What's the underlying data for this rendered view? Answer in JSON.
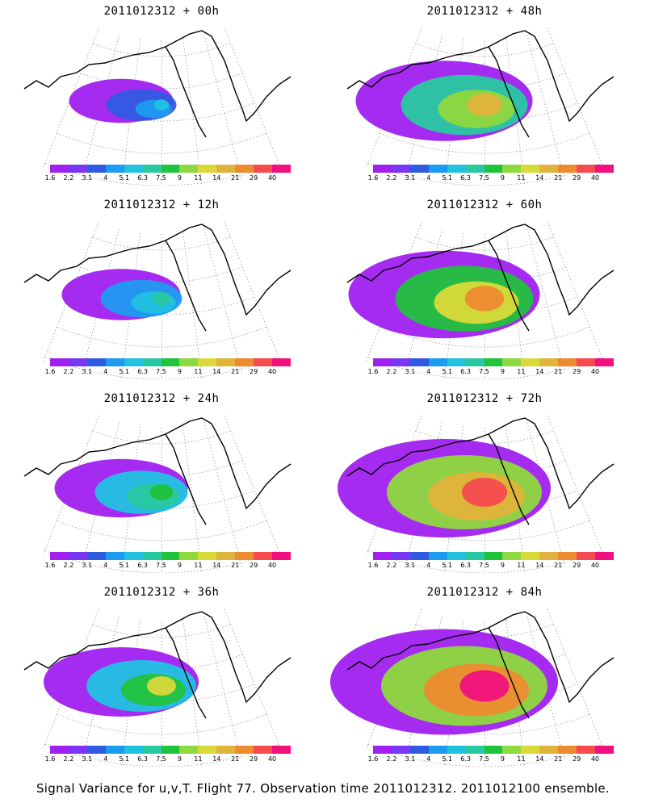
{
  "caption": "Signal Variance for u,v,T. Flight 77. Observation time 2011012312. 2011012100 ensemble.",
  "colorbar": {
    "colors": [
      "#a020f0",
      "#7a36f5",
      "#2f5be0",
      "#1d9bf0",
      "#21c2e0",
      "#28c9a0",
      "#21c23c",
      "#8ed93d",
      "#d9d93a",
      "#e0b33a",
      "#ee8a30",
      "#f54a50",
      "#f0107e"
    ],
    "labels": [
      "1.6",
      "2.2",
      "3.1",
      "4",
      "5.1",
      "6.3",
      "7.5",
      "9",
      "11",
      "14",
      "21",
      "29",
      "40"
    ]
  },
  "panels": [
    {
      "title": "2011012312 + 00h",
      "level": 0.05
    },
    {
      "title": "2011012312 + 48h",
      "level": 0.55
    },
    {
      "title": "2011012312 + 12h",
      "level": 0.15
    },
    {
      "title": "2011012312 + 60h",
      "level": 0.65
    },
    {
      "title": "2011012312 + 24h",
      "level": 0.25
    },
    {
      "title": "2011012312 + 72h",
      "level": 0.8
    },
    {
      "title": "2011012312 + 36h",
      "level": 0.4
    },
    {
      "title": "2011012312 + 84h",
      "level": 0.9
    }
  ]
}
